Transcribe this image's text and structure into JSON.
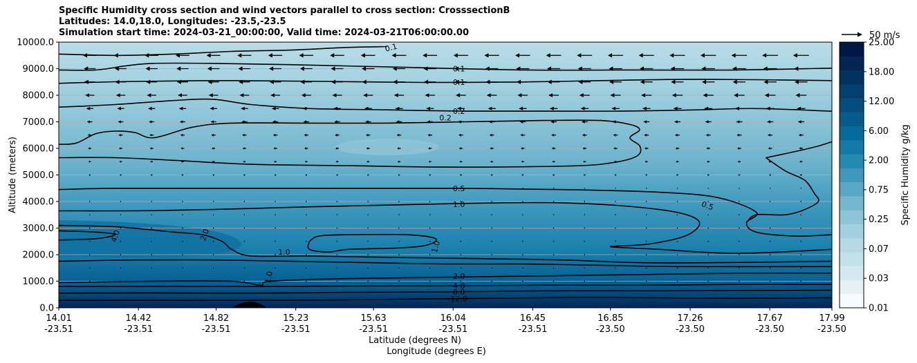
{
  "chart_data": {
    "type": "contour",
    "title_lines": [
      "Specific Humidity cross section and wind vectors parallel to cross section: CrosssectionB",
      "Latitudes: 14.0,18.0, Longitudes: -23.5,-23.5",
      "Simulation start time: 2024-03-21_00:00:00, Valid time: 2024-03-21T06:00:00.00"
    ],
    "xlabel_lines": [
      "Latitude (degrees N)",
      "Longitude (degrees E)"
    ],
    "ylabel": "Altitude (meters)",
    "ylim": [
      0,
      10000
    ],
    "xlim": [
      14.01,
      17.99
    ],
    "y_ticks": [
      "0.0",
      "1000.0",
      "2000.0",
      "3000.0",
      "4000.0",
      "5000.0",
      "6000.0",
      "7000.0",
      "8000.0",
      "9000.0",
      "10000.0"
    ],
    "x_ticks": [
      {
        "lat": "14.01",
        "lon": "-23.51"
      },
      {
        "lat": "14.42",
        "lon": "-23.51"
      },
      {
        "lat": "14.82",
        "lon": "-23.51"
      },
      {
        "lat": "15.23",
        "lon": "-23.51"
      },
      {
        "lat": "15.63",
        "lon": "-23.51"
      },
      {
        "lat": "16.04",
        "lon": "-23.51"
      },
      {
        "lat": "16.45",
        "lon": "-23.51"
      },
      {
        "lat": "16.85",
        "lon": "-23.50"
      },
      {
        "lat": "17.26",
        "lon": "-23.50"
      },
      {
        "lat": "17.67",
        "lon": "-23.50"
      },
      {
        "lat": "17.99",
        "lon": "-23.50"
      }
    ],
    "colorbar": {
      "label": "Specific Humidity g/kg",
      "levels": [
        0.01,
        0.02,
        0.03,
        0.05,
        0.07,
        0.1,
        0.25,
        0.5,
        0.75,
        1.0,
        2.0,
        4.0,
        6.0,
        9.0,
        12.0,
        15.0,
        18.0,
        21.0,
        25.0
      ],
      "tick_labels": [
        "0.01",
        "0.03",
        "0.07",
        "0.25",
        "0.75",
        "2.00",
        "6.00",
        "12.00",
        "18.00",
        "25.00"
      ],
      "colors": [
        "#f7fbff",
        "#e4f1f5",
        "#d3e9ef",
        "#c3e1ea",
        "#b4d9e5",
        "#a3d0df",
        "#8dc4d8",
        "#74b6d0",
        "#5aa8c7",
        "#3e98bd",
        "#2589b3",
        "#1279a8",
        "#086a9c",
        "#055b8d",
        "#044d7e",
        "#043f70",
        "#033262",
        "#022554",
        "#011846"
      ]
    },
    "contour_lines": [
      {
        "level": "0.1",
        "points": [
          [
            14.01,
            9550
          ],
          [
            14.3,
            9500
          ],
          [
            14.6,
            9550
          ],
          [
            14.9,
            9650
          ],
          [
            15.2,
            9700
          ],
          [
            15.5,
            9800
          ],
          [
            15.7,
            9830
          ]
        ]
      },
      {
        "level": "0.1",
        "points": [
          [
            14.01,
            8950
          ],
          [
            14.2,
            8950
          ],
          [
            14.35,
            9100
          ],
          [
            14.5,
            9200
          ],
          [
            14.8,
            9200
          ],
          [
            15.2,
            9150
          ],
          [
            15.8,
            9050
          ],
          [
            16.4,
            8950
          ],
          [
            17.0,
            8950
          ],
          [
            17.5,
            8950
          ],
          [
            17.99,
            9020
          ]
        ]
      },
      {
        "level": "0.1",
        "points": [
          [
            14.01,
            8450
          ],
          [
            14.4,
            8520
          ],
          [
            14.9,
            8550
          ],
          [
            15.4,
            8520
          ],
          [
            15.9,
            8480
          ],
          [
            16.4,
            8500
          ],
          [
            16.8,
            8550
          ],
          [
            17.3,
            8600
          ],
          [
            17.99,
            8550
          ]
        ]
      },
      {
        "level": "0.2",
        "points": [
          [
            14.01,
            7550
          ],
          [
            14.3,
            7650
          ],
          [
            14.6,
            7800
          ],
          [
            14.8,
            7850
          ],
          [
            15.0,
            7650
          ],
          [
            15.3,
            7500
          ],
          [
            15.7,
            7450
          ],
          [
            16.1,
            7400
          ],
          [
            16.5,
            7400
          ],
          [
            16.9,
            7400
          ],
          [
            17.3,
            7450
          ],
          [
            17.6,
            7500
          ],
          [
            17.99,
            7400
          ]
        ]
      },
      {
        "level": "0.2",
        "points": [
          [
            14.01,
            6150
          ],
          [
            14.1,
            6200
          ],
          [
            14.2,
            6550
          ],
          [
            14.3,
            6650
          ],
          [
            14.4,
            6600
          ],
          [
            14.5,
            6400
          ],
          [
            14.7,
            6800
          ],
          [
            14.9,
            6950
          ],
          [
            15.3,
            6950
          ],
          [
            15.7,
            6950
          ],
          [
            16.1,
            7000
          ],
          [
            16.5,
            7050
          ],
          [
            16.8,
            7050
          ],
          [
            16.95,
            6900
          ],
          [
            17.0,
            6700
          ],
          [
            16.95,
            6400
          ],
          [
            17.0,
            6100
          ],
          [
            17.0,
            5800
          ],
          [
            16.95,
            5600
          ],
          [
            16.85,
            5450
          ],
          [
            16.7,
            5350
          ],
          [
            16.3,
            5300
          ],
          [
            15.9,
            5300
          ],
          [
            15.5,
            5350
          ],
          [
            15.0,
            5400
          ],
          [
            14.6,
            5550
          ],
          [
            14.3,
            5650
          ],
          [
            14.01,
            5650
          ]
        ]
      },
      {
        "level": "0.5",
        "points": [
          [
            14.01,
            4450
          ],
          [
            14.3,
            4500
          ],
          [
            14.8,
            4500
          ],
          [
            15.4,
            4500
          ],
          [
            16.0,
            4500
          ],
          [
            16.6,
            4450
          ],
          [
            17.1,
            4350
          ],
          [
            17.4,
            4150
          ],
          [
            17.6,
            3600
          ],
          [
            17.55,
            3200
          ],
          [
            17.6,
            2850
          ],
          [
            17.8,
            2700
          ],
          [
            17.99,
            2750
          ]
        ]
      },
      {
        "level": "0.5",
        "points": [
          [
            17.65,
            5650
          ],
          [
            17.75,
            5800
          ],
          [
            17.9,
            6050
          ],
          [
            17.99,
            6250
          ]
        ]
      },
      {
        "level": "0.5",
        "points": [
          [
            17.65,
            5650
          ],
          [
            17.75,
            5150
          ],
          [
            17.85,
            4800
          ],
          [
            17.9,
            4300
          ],
          [
            17.92,
            4000
          ],
          [
            17.85,
            3700
          ],
          [
            17.75,
            3500
          ],
          [
            17.6,
            3500
          ],
          [
            17.55,
            3200
          ]
        ]
      },
      {
        "level": "1.0",
        "points": [
          [
            14.01,
            3650
          ],
          [
            14.4,
            3650
          ],
          [
            14.8,
            3700
          ],
          [
            15.3,
            3800
          ],
          [
            15.9,
            3900
          ],
          [
            16.6,
            3950
          ],
          [
            17.1,
            3700
          ],
          [
            17.3,
            3300
          ],
          [
            17.25,
            2750
          ],
          [
            17.05,
            2400
          ],
          [
            16.85,
            2300
          ],
          [
            17.1,
            2200
          ],
          [
            17.5,
            2050
          ],
          [
            17.99,
            2200
          ]
        ]
      },
      {
        "level": "1.0",
        "points": [
          [
            15.3,
            2500
          ],
          [
            15.35,
            2700
          ],
          [
            15.5,
            2750
          ],
          [
            15.8,
            2750
          ],
          [
            15.95,
            2600
          ],
          [
            15.9,
            2350
          ],
          [
            15.75,
            2250
          ],
          [
            15.5,
            2200
          ],
          [
            15.4,
            2100
          ],
          [
            15.3,
            2200
          ],
          [
            15.3,
            2500
          ]
        ]
      },
      {
        "level": "2.0",
        "points": [
          [
            14.01,
            3100
          ],
          [
            14.3,
            3050
          ],
          [
            14.6,
            2850
          ],
          [
            14.75,
            2750
          ],
          [
            14.85,
            2500
          ],
          [
            14.9,
            2200
          ],
          [
            15.0,
            1950
          ],
          [
            15.3,
            1950
          ],
          [
            15.7,
            1900
          ],
          [
            16.2,
            1850
          ],
          [
            16.6,
            1800
          ],
          [
            17.0,
            1700
          ],
          [
            17.4,
            1700
          ],
          [
            17.99,
            1750
          ]
        ]
      },
      {
        "level": "4.0",
        "points": [
          [
            14.01,
            2900
          ],
          [
            14.2,
            2850
          ],
          [
            14.3,
            2750
          ],
          [
            14.2,
            2600
          ],
          [
            14.01,
            2550
          ]
        ]
      },
      {
        "level": "2.0",
        "points": [
          [
            14.01,
            1750
          ],
          [
            14.4,
            1800
          ],
          [
            14.8,
            1800
          ],
          [
            15.2,
            1750
          ],
          [
            15.6,
            1700
          ],
          [
            16.0,
            1650
          ],
          [
            16.4,
            1650
          ],
          [
            16.8,
            1600
          ],
          [
            17.2,
            1550
          ],
          [
            17.99,
            1550
          ]
        ]
      },
      {
        "level": "2.0",
        "points": [
          [
            14.01,
            950
          ],
          [
            14.5,
            1000
          ],
          [
            14.9,
            1000
          ],
          [
            15.05,
            850
          ],
          [
            15.1,
            1000
          ],
          [
            15.5,
            1100
          ],
          [
            16.0,
            1150
          ],
          [
            16.5,
            1200
          ],
          [
            17.0,
            1250
          ],
          [
            17.5,
            1300
          ],
          [
            17.99,
            1300
          ]
        ]
      },
      {
        "level": "4.0",
        "points": [
          [
            14.01,
            800
          ],
          [
            14.5,
            800
          ],
          [
            15.0,
            800
          ],
          [
            15.5,
            820
          ],
          [
            16.0,
            830
          ],
          [
            16.5,
            850
          ],
          [
            17.0,
            850
          ],
          [
            17.5,
            880
          ],
          [
            17.99,
            880
          ]
        ]
      },
      {
        "level": "8.0",
        "points": [
          [
            14.01,
            550
          ],
          [
            14.5,
            560
          ],
          [
            15.0,
            550
          ],
          [
            15.5,
            580
          ],
          [
            16.0,
            600
          ],
          [
            16.5,
            640
          ],
          [
            17.0,
            640
          ],
          [
            17.5,
            650
          ],
          [
            17.99,
            660
          ]
        ]
      },
      {
        "level": "12.0",
        "points": [
          [
            14.01,
            280
          ],
          [
            14.5,
            290
          ],
          [
            15.0,
            280
          ],
          [
            15.5,
            300
          ],
          [
            16.0,
            340
          ],
          [
            16.5,
            380
          ],
          [
            17.0,
            380
          ],
          [
            17.5,
            360
          ],
          [
            17.99,
            380
          ]
        ]
      }
    ],
    "contour_labels": [
      {
        "text": "0.1",
        "x": 15.72,
        "y": 9800,
        "rotate": -15
      },
      {
        "text": "0.1",
        "x": 16.07,
        "y": 9000,
        "rotate": 0
      },
      {
        "text": "0.1",
        "x": 16.07,
        "y": 8500,
        "rotate": 0
      },
      {
        "text": "0.2",
        "x": 16.07,
        "y": 7400,
        "rotate": 0
      },
      {
        "text": "0.2",
        "x": 16.0,
        "y": 7150,
        "rotate": 0
      },
      {
        "text": "0.5",
        "x": 16.07,
        "y": 4500,
        "rotate": 0
      },
      {
        "text": "1.0",
        "x": 16.07,
        "y": 3900,
        "rotate": 0
      },
      {
        "text": "0.5",
        "x": 17.35,
        "y": 3850,
        "rotate": 20
      },
      {
        "text": "4.0",
        "x": 14.3,
        "y": 2700,
        "rotate": -70
      },
      {
        "text": "2.0",
        "x": 14.76,
        "y": 2750,
        "rotate": -70
      },
      {
        "text": "1.0",
        "x": 15.17,
        "y": 2100,
        "rotate": 0
      },
      {
        "text": "1.0",
        "x": 15.95,
        "y": 2300,
        "rotate": -75
      },
      {
        "text": "1.0",
        "x": 15.09,
        "y": 1150,
        "rotate": -80
      },
      {
        "text": "2.0",
        "x": 16.07,
        "y": 1200,
        "rotate": 0
      },
      {
        "text": "4.0",
        "x": 16.07,
        "y": 830,
        "rotate": 0
      },
      {
        "text": "8.0",
        "x": 16.07,
        "y": 600,
        "rotate": 0
      },
      {
        "text": "12.0",
        "x": 16.07,
        "y": 340,
        "rotate": 0
      }
    ],
    "terrain": {
      "x_start": 14.9,
      "x_peak": 15.0,
      "x_end": 15.08,
      "peak_altitude": 200
    },
    "wind_key": {
      "label": "50 m/s",
      "speed": 50
    },
    "wind_vector_rows": [
      {
        "y": 9500,
        "u": -32
      },
      {
        "y": 9000,
        "u": -28
      },
      {
        "y": 8500,
        "u": -26
      },
      {
        "y": 8000,
        "u": -22
      },
      {
        "y": 7500,
        "u": -17
      },
      {
        "y": 7000,
        "u": -13
      },
      {
        "y": 6500,
        "u": -10
      },
      {
        "y": 6000,
        "u": -8
      },
      {
        "y": 5500,
        "u": -6
      },
      {
        "y": 5000,
        "u": -4
      },
      {
        "y": 4500,
        "u": -2
      },
      {
        "y": 4000,
        "u": -1
      },
      {
        "y": 3500,
        "u": -1
      },
      {
        "y": 3000,
        "u": 0
      },
      {
        "y": 2500,
        "u": 0
      },
      {
        "y": 2000,
        "u": 0
      },
      {
        "y": 1500,
        "u": 0
      },
      {
        "y": 1000,
        "u": 0
      }
    ],
    "grid": true,
    "legend_placement": "colorbar-right"
  }
}
